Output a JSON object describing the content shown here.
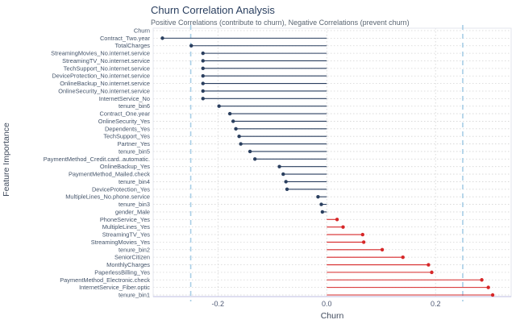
{
  "title": "Churn Correlation Analysis",
  "subtitle": "Positive Correlations (contribute to churn), Negative Correlations (prevent churn)",
  "chart_data": {
    "type": "bar",
    "orientation": "horizontal",
    "style": "lollipop",
    "title": "Churn Correlation Analysis",
    "subtitle": "Positive Correlations (contribute to churn), Negative Correlations (prevent churn)",
    "xlabel": "Churn",
    "ylabel": "Feature Importance",
    "xlim": [
      -0.319,
      0.339
    ],
    "xticks": [
      -0.2,
      0.0,
      0.2
    ],
    "xtick_labels": [
      "-0.2",
      "0.0",
      "0.2"
    ],
    "threshold_lines": [
      -0.25,
      0.25
    ],
    "grid": true,
    "legend": "none",
    "categories": [
      "Churn",
      "Contract_Two.year",
      "TotalCharges",
      "StreamingMovies_No.internet.service",
      "StreamingTV_No.internet.service",
      "TechSupport_No.internet.service",
      "DeviceProtection_No.internet.service",
      "OnlineBackup_No.internet.service",
      "OnlineSecurity_No.internet.service",
      "InternetService_No",
      "tenure_bin6",
      "Contract_One.year",
      "OnlineSecurity_Yes",
      "Dependents_Yes",
      "TechSupport_Yes",
      "Partner_Yes",
      "tenure_bin5",
      "PaymentMethod_Credit.card..automatic.",
      "OnlineBackup_Yes",
      "PaymentMethod_Mailed.check",
      "tenure_bin4",
      "DeviceProtection_Yes",
      "MultipleLines_No.phone.service",
      "tenure_bin3",
      "gender_Male",
      "PhoneService_Yes",
      "MultipleLines_Yes",
      "StreamingTV_Yes",
      "StreamingMovies_Yes",
      "tenure_bin2",
      "SeniorCitizen",
      "MonthlyCharges",
      "PaperlessBilling_Yes",
      "PaymentMethod_Electronic.check",
      "InternetService_Fiber.optic",
      "tenure_bin1"
    ],
    "values": [
      null,
      -0.302,
      -0.249,
      -0.2275,
      -0.2275,
      -0.2275,
      -0.2275,
      -0.2275,
      -0.2275,
      -0.2275,
      -0.198,
      -0.178,
      -0.172,
      -0.167,
      -0.161,
      -0.158,
      -0.141,
      -0.132,
      -0.087,
      -0.08,
      -0.075,
      -0.073,
      -0.016,
      -0.01,
      -0.008,
      0.019,
      0.03,
      0.066,
      0.068,
      0.102,
      0.14,
      0.187,
      0.193,
      0.285,
      0.297,
      0.305
    ],
    "colors": {
      "positive": "#d62728",
      "negative": "#2a3f5f",
      "threshold": "#a8cee6",
      "grid": "#d4d4d4",
      "axis_line": "#c9cbe8",
      "plot_border": "#e3e6ee",
      "tick_label": "#4c5773",
      "category_label": "#44546a"
    }
  }
}
